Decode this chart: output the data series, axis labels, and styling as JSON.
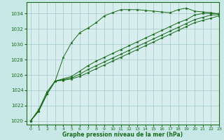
{
  "title": "Graphe pression niveau de la mer (hPa)",
  "bg_color": "#c8e8e8",
  "plot_bg_color": "#d8eeee",
  "line_color": "#1a6b1a",
  "grid_color": "#a0c8c8",
  "xlim": [
    -0.5,
    23
  ],
  "ylim": [
    1019.5,
    1035.5
  ],
  "yticks": [
    1020,
    1022,
    1024,
    1026,
    1028,
    1030,
    1032,
    1034
  ],
  "xticks": [
    0,
    1,
    2,
    3,
    4,
    5,
    6,
    7,
    8,
    9,
    10,
    11,
    12,
    13,
    14,
    15,
    16,
    17,
    18,
    19,
    20,
    21,
    22,
    23
  ],
  "series": [
    [
      1020.0,
      1021.5,
      1023.8,
      1025.2,
      1028.3,
      1030.2,
      1031.5,
      1032.1,
      1032.8,
      1033.7,
      1034.1,
      1034.5,
      1034.5,
      1034.5,
      1034.4,
      1034.3,
      1034.2,
      1034.1,
      1034.5,
      1034.7,
      1034.3,
      1034.2,
      1034.1,
      1033.9
    ],
    [
      1020.0,
      1021.3,
      1023.5,
      1025.2,
      1025.5,
      1025.8,
      1026.5,
      1027.2,
      1027.8,
      1028.3,
      1028.8,
      1029.3,
      1029.8,
      1030.3,
      1030.8,
      1031.3,
      1031.8,
      1032.3,
      1032.8,
      1033.2,
      1033.8,
      1034.0,
      1034.0,
      1034.0
    ],
    [
      1020.0,
      1021.3,
      1023.5,
      1025.2,
      1025.4,
      1025.6,
      1026.1,
      1026.7,
      1027.2,
      1027.7,
      1028.2,
      1028.7,
      1029.2,
      1029.7,
      1030.2,
      1030.7,
      1031.2,
      1031.7,
      1032.2,
      1032.7,
      1033.2,
      1033.5,
      1033.8,
      1033.85
    ],
    [
      1020.0,
      1021.3,
      1023.5,
      1025.2,
      1025.3,
      1025.5,
      1025.8,
      1026.3,
      1026.8,
      1027.3,
      1027.8,
      1028.3,
      1028.8,
      1029.3,
      1029.8,
      1030.3,
      1030.8,
      1031.3,
      1031.8,
      1032.3,
      1032.8,
      1033.1,
      1033.4,
      1033.7
    ]
  ]
}
